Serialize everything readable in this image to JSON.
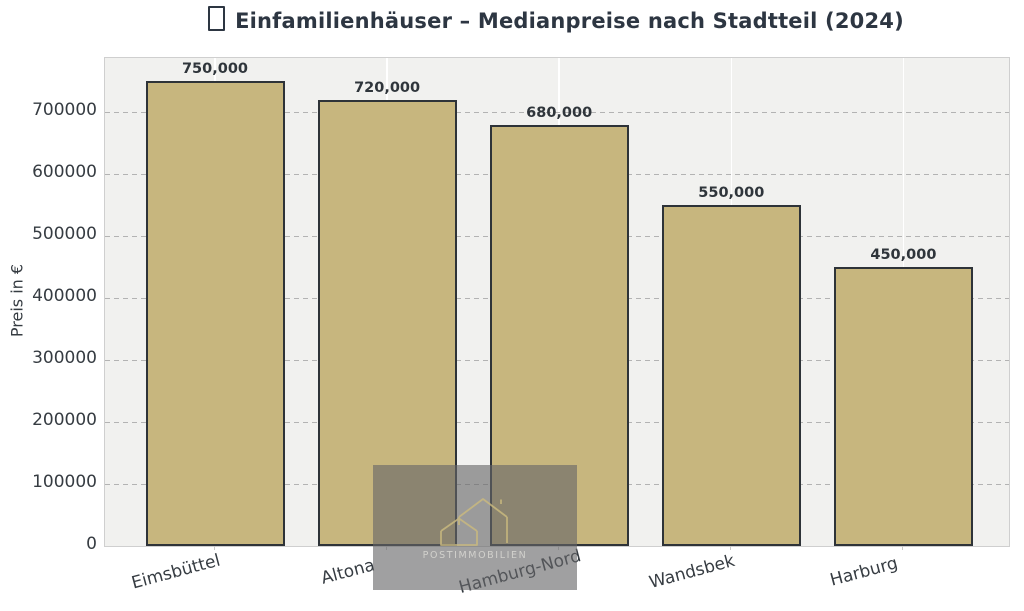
{
  "title": {
    "leading_icon": "house-emoji-missing-glyph-box"
  },
  "chart_data": {
    "type": "bar",
    "title": "Einfamilienhäuser – Medianpreise nach Stadtteil (2024)",
    "categories": [
      "Eimsbüttel",
      "Altona",
      "Hamburg-Nord",
      "Wandsbek",
      "Harburg"
    ],
    "values": [
      750000,
      720000,
      680000,
      550000,
      450000
    ],
    "bar_value_labels": [
      "750,000",
      "720,000",
      "680,000",
      "550,000",
      "450,000"
    ],
    "xlabel": "",
    "ylabel": "Preis in €",
    "ylim": [
      0,
      787500
    ],
    "y_ticks": [
      0,
      100000,
      200000,
      300000,
      400000,
      500000,
      600000,
      700000
    ],
    "y_tick_labels": [
      "0",
      "100000",
      "200000",
      "300000",
      "400000",
      "500000",
      "600000",
      "700000"
    ],
    "grid": "horizontal-dashed-gray, vertical-solid-white",
    "legend": "none",
    "x_tick_rotation_deg": -15,
    "colors": {
      "bar_fill": "#c7b67e",
      "bar_edge": "#2e3338",
      "plot_background": "#f1f1ef",
      "figure_background": "#ffffff",
      "grid_line": "#b3b3b3",
      "title_text": "#2d3642",
      "tick_text": "#363c42",
      "value_label_text": "#2f353b"
    }
  },
  "watermark": {
    "text": "POSTIMMOBILIEN",
    "icon": "house-outline",
    "accent_color": "#c9b97f"
  }
}
